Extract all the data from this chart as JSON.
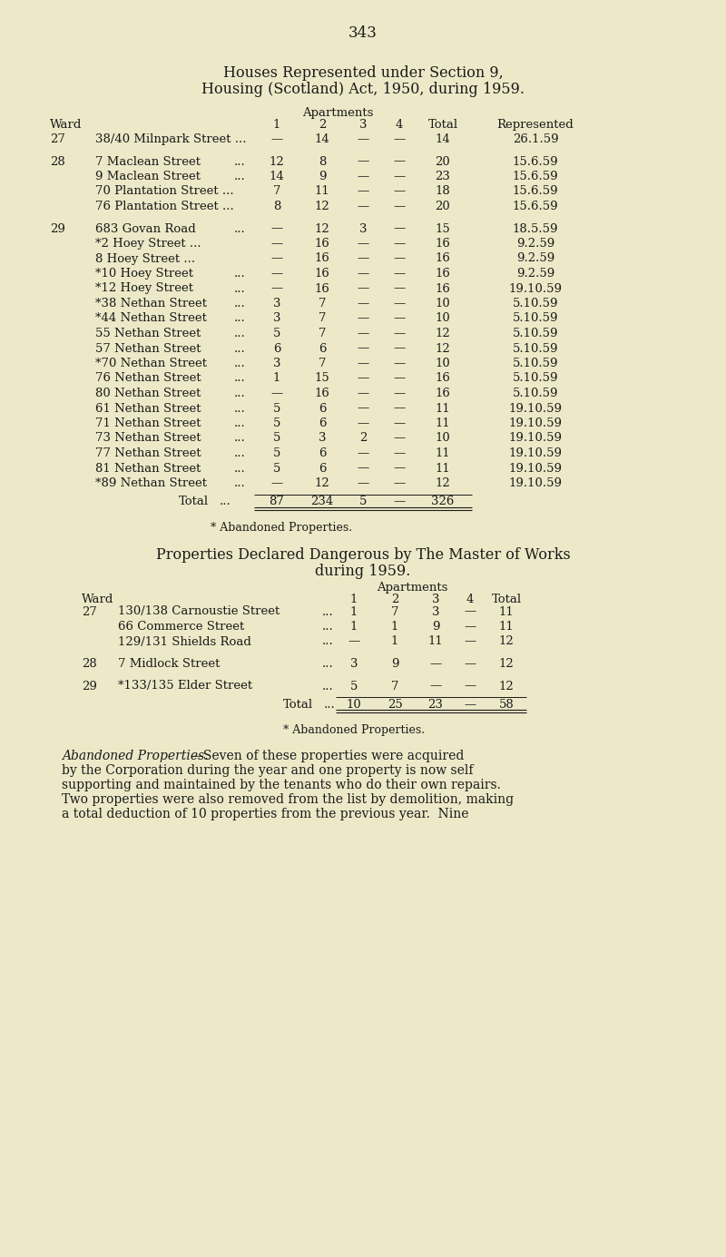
{
  "bg_color": "#ede9c8",
  "page_number": "343",
  "title1": "Houses Represented under Section 9,",
  "title2": "Housing (Scotland) Act, 1950, during 1959.",
  "table1_rows": [
    {
      "ward": "27",
      "address": "38/40 Milnpark Street ...",
      "dots": true,
      "c1": "—",
      "c2": "14",
      "c3": "—",
      "c4": "—",
      "total": "14",
      "repr": "26.1.59",
      "gap_before": false
    },
    {
      "ward": "28",
      "address": "7 Maclean Street",
      "dots": true,
      "c1": "12",
      "c2": "8",
      "c3": "—",
      "c4": "—",
      "total": "20",
      "repr": "15.6.59",
      "gap_before": true
    },
    {
      "ward": "",
      "address": "9 Maclean Street",
      "dots": true,
      "c1": "14",
      "c2": "9",
      "c3": "—",
      "c4": "—",
      "total": "23",
      "repr": "15.6.59",
      "gap_before": false
    },
    {
      "ward": "",
      "address": "70 Plantation Street ...",
      "dots": false,
      "c1": "7",
      "c2": "11",
      "c3": "—",
      "c4": "—",
      "total": "18",
      "repr": "15.6.59",
      "gap_before": false
    },
    {
      "ward": "",
      "address": "76 Plantation Street ...",
      "dots": false,
      "c1": "8",
      "c2": "12",
      "c3": "—",
      "c4": "—",
      "total": "20",
      "repr": "15.6.59",
      "gap_before": false
    },
    {
      "ward": "29",
      "address": "683 Govan Road",
      "dots": true,
      "c1": "—",
      "c2": "12",
      "c3": "3",
      "c4": "—",
      "total": "15",
      "repr": "18.5.59",
      "gap_before": true
    },
    {
      "ward": "",
      "address": "*2 Hoey Street ...",
      "dots": true,
      "c1": "—",
      "c2": "16",
      "c3": "—",
      "c4": "—",
      "total": "16",
      "repr": "9.2.59",
      "gap_before": false
    },
    {
      "ward": "",
      "address": "8 Hoey Street ...",
      "dots": true,
      "c1": "—",
      "c2": "16",
      "c3": "—",
      "c4": "—",
      "total": "16",
      "repr": "9.2.59",
      "gap_before": false
    },
    {
      "ward": "",
      "address": "*10 Hoey Street",
      "dots": true,
      "c1": "—",
      "c2": "16",
      "c3": "—",
      "c4": "—",
      "total": "16",
      "repr": "9.2.59",
      "gap_before": false
    },
    {
      "ward": "",
      "address": "*12 Hoey Street",
      "dots": true,
      "c1": "—",
      "c2": "16",
      "c3": "—",
      "c4": "—",
      "total": "16",
      "repr": "19.10.59",
      "gap_before": false
    },
    {
      "ward": "",
      "address": "*38 Nethan Street",
      "dots": true,
      "c1": "3",
      "c2": "7",
      "c3": "—",
      "c4": "—",
      "total": "10",
      "repr": "5.10.59",
      "gap_before": false
    },
    {
      "ward": "",
      "address": "*44 Nethan Street",
      "dots": true,
      "c1": "3",
      "c2": "7",
      "c3": "—",
      "c4": "—",
      "total": "10",
      "repr": "5.10.59",
      "gap_before": false
    },
    {
      "ward": "",
      "address": "55 Nethan Street",
      "dots": true,
      "c1": "5",
      "c2": "7",
      "c3": "—",
      "c4": "—",
      "total": "12",
      "repr": "5.10.59",
      "gap_before": false
    },
    {
      "ward": "",
      "address": "57 Nethan Street",
      "dots": true,
      "c1": "6",
      "c2": "6",
      "c3": "—",
      "c4": "—",
      "total": "12",
      "repr": "5.10.59",
      "gap_before": false
    },
    {
      "ward": "",
      "address": "*70 Nethan Street",
      "dots": true,
      "c1": "3",
      "c2": "7",
      "c3": "—",
      "c4": "—",
      "total": "10",
      "repr": "5.10.59",
      "gap_before": false
    },
    {
      "ward": "",
      "address": "76 Nethan Street",
      "dots": true,
      "c1": "1",
      "c2": "15",
      "c3": "—",
      "c4": "—",
      "total": "16",
      "repr": "5.10.59",
      "gap_before": false
    },
    {
      "ward": "",
      "address": "80 Nethan Street",
      "dots": true,
      "c1": "—",
      "c2": "16",
      "c3": "—",
      "c4": "—",
      "total": "16",
      "repr": "5.10.59",
      "gap_before": false
    },
    {
      "ward": "",
      "address": "61 Nethan Street",
      "dots": true,
      "c1": "5",
      "c2": "6",
      "c3": "—",
      "c4": "—",
      "total": "11",
      "repr": "19.10.59",
      "gap_before": false
    },
    {
      "ward": "",
      "address": "71 Nethan Street",
      "dots": true,
      "c1": "5",
      "c2": "6",
      "c3": "—",
      "c4": "—",
      "total": "11",
      "repr": "19.10.59",
      "gap_before": false
    },
    {
      "ward": "",
      "address": "73 Nethan Street",
      "dots": true,
      "c1": "5",
      "c2": "3",
      "c3": "2",
      "c4": "—",
      "total": "10",
      "repr": "19.10.59",
      "gap_before": false
    },
    {
      "ward": "",
      "address": "77 Nethan Street",
      "dots": true,
      "c1": "5",
      "c2": "6",
      "c3": "—",
      "c4": "—",
      "total": "11",
      "repr": "19.10.59",
      "gap_before": false
    },
    {
      "ward": "",
      "address": "81 Nethan Street",
      "dots": true,
      "c1": "5",
      "c2": "6",
      "c3": "—",
      "c4": "—",
      "total": "11",
      "repr": "19.10.59",
      "gap_before": false
    },
    {
      "ward": "",
      "address": "*89 Nethan Street",
      "dots": true,
      "c1": "—",
      "c2": "12",
      "c3": "—",
      "c4": "—",
      "total": "12",
      "repr": "19.10.59",
      "gap_before": false
    }
  ],
  "table1_total": {
    "c1": "87",
    "c2": "234",
    "c3": "5",
    "c4": "—",
    "total": "326"
  },
  "abandoned_note": "* Abandoned Properties.",
  "title3": "Properties Declared Dangerous by The Master of Works",
  "title4": "during 1959.",
  "table2_rows": [
    {
      "ward": "27",
      "address": "130/138 Carnoustie Street",
      "dots": true,
      "c1": "1",
      "c2": "7",
      "c3": "3",
      "c4": "—",
      "total": "11",
      "gap_before": false
    },
    {
      "ward": "",
      "address": "66 Commerce Street",
      "dots": true,
      "c1": "1",
      "c2": "1",
      "c3": "9",
      "c4": "—",
      "total": "11",
      "gap_before": false
    },
    {
      "ward": "",
      "address": "129/131 Shields Road",
      "dots": true,
      "c1": "—",
      "c2": "1",
      "c3": "11",
      "c4": "—",
      "total": "12",
      "gap_before": false
    },
    {
      "ward": "28",
      "address": "7 Midlock Street",
      "dots": true,
      "c1": "3",
      "c2": "9",
      "c3": "—",
      "c4": "—",
      "total": "12",
      "gap_before": true
    },
    {
      "ward": "29",
      "address": "*133/135 Elder Street",
      "dots": true,
      "c1": "5",
      "c2": "7",
      "c3": "—",
      "c4": "—",
      "total": "12",
      "gap_before": true
    }
  ],
  "table2_total": {
    "c1": "10",
    "c2": "25",
    "c3": "23",
    "c4": "—",
    "total": "58"
  },
  "abandoned_note2": "* Abandoned Properties.",
  "para_line1_italic": "Abandoned Properties.",
  "para_line1_normal": "—Seven of these properties were acquired",
  "para_line2": "by the Corporation during the year and one property is now self",
  "para_line3": "supporting and maintained by the tenants who do their own repairs.",
  "para_line4": "Two properties were also removed from the list by demolition, making",
  "para_line5": "a total deduction of 10 properties from the previous year.  Nine"
}
